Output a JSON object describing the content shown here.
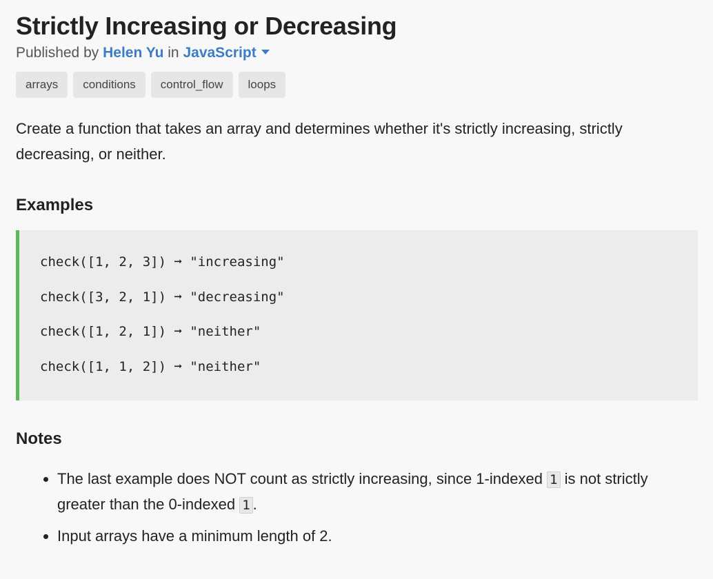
{
  "title": "Strictly Increasing or Decreasing",
  "meta": {
    "published_by": "Published by",
    "author": "Helen Yu",
    "in_word": "in",
    "language": "JavaScript"
  },
  "tags": [
    "arrays",
    "conditions",
    "control_flow",
    "loops"
  ],
  "description": "Create a function that takes an array and determines whether it's strictly increasing, strictly decreasing, or neither.",
  "examples_heading": "Examples",
  "examples": [
    "check([1, 2, 3]) ➞ \"increasing\"",
    "check([3, 2, 1]) ➞ \"decreasing\"",
    "check([1, 2, 1]) ➞ \"neither\"",
    "check([1, 1, 2]) ➞ \"neither\""
  ],
  "notes_heading": "Notes",
  "notes": {
    "note1_a": "The last example does NOT count as strictly increasing, since 1-indexed ",
    "note1_code1": "1",
    "note1_b": " is not strictly greater than the 0-indexed ",
    "note1_code2": "1",
    "note1_c": ".",
    "note2": "Input arrays have a minimum length of 2."
  },
  "colors": {
    "link": "#3b7cc4",
    "accent_border": "#5cb85c",
    "tag_bg": "#e6e6e6",
    "code_bg": "#ececec"
  }
}
